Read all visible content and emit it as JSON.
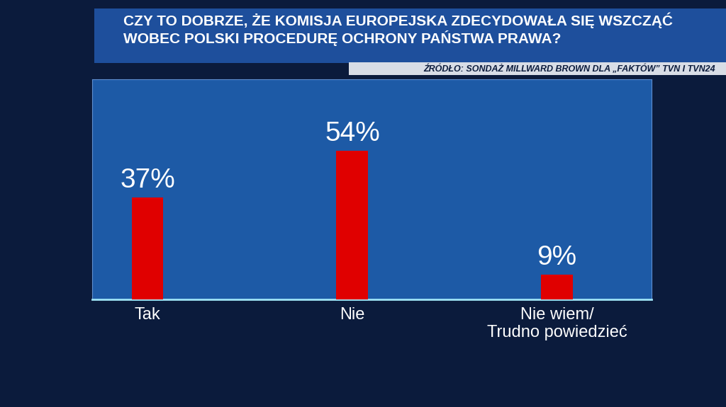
{
  "chart_data": {
    "type": "bar",
    "title": "CZY TO DOBRZE, ŻE KOMISJA EUROPEJSKA ZDECYDOWAŁA SIĘ WSZCZĄĆ WOBEC POLSKI PROCEDURĘ OCHRONY PAŃSTWA PRAWA?",
    "subtitle": "ŹRÓDŁO: SONDAŻ MILLWARD BROWN DLA „FAKTÓW” TVN I TVN24",
    "categories": [
      "Tak",
      "Nie",
      "Nie wiem/\nTrudno powiedzieć"
    ],
    "values": [
      37,
      54,
      9
    ],
    "value_labels": [
      "37%",
      "54%",
      "9%"
    ],
    "color": "#e00000",
    "ylim": [
      0,
      80
    ],
    "yticks": [],
    "data_labels": true,
    "tick_labels": "x",
    "grid": false
  }
}
